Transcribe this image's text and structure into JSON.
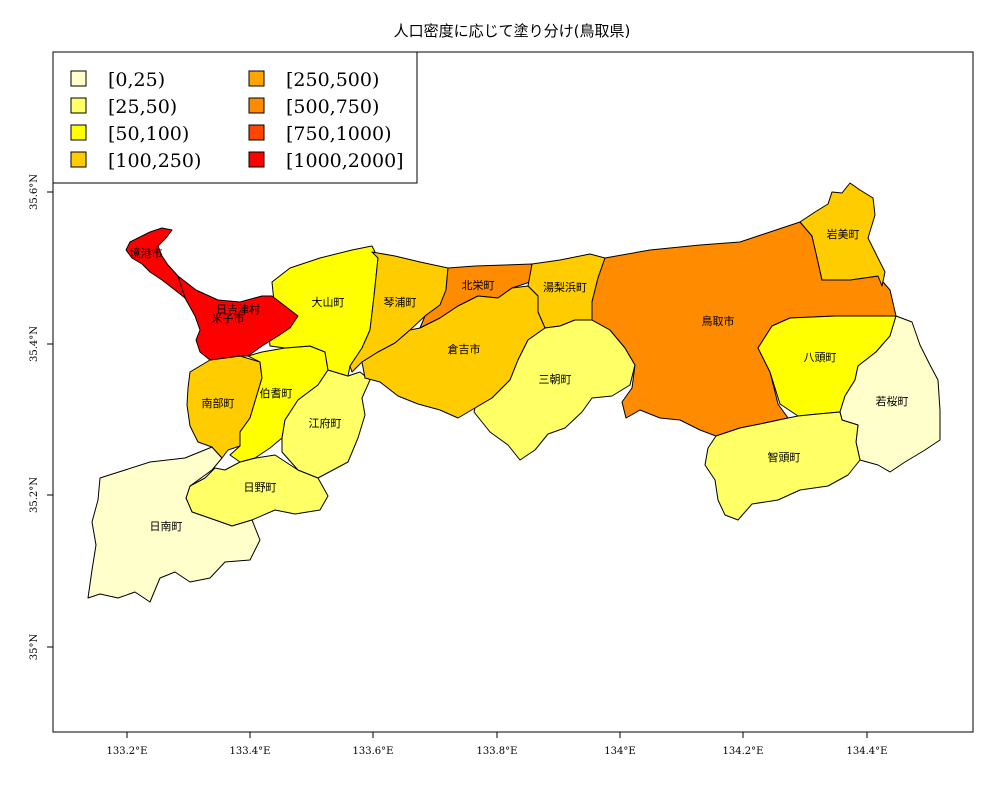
{
  "map": {
    "title": "人口密度に応じて塗り分け(鳥取県)",
    "x_ticks": [
      "133.2°E",
      "133.4°E",
      "133.6°E",
      "133.8°E",
      "134°E",
      "134.2°E",
      "134.4°E"
    ],
    "y_ticks": [
      "35°N",
      "35.2°N",
      "35.4°N",
      "35.6°N"
    ],
    "legend": [
      {
        "label": "[0,25)",
        "color": "#FFFFCC"
      },
      {
        "label": "[25,50)",
        "color": "#FFFF66"
      },
      {
        "label": "[50,100)",
        "color": "#FFFF00"
      },
      {
        "label": "[100,250)",
        "color": "#FFCC00"
      },
      {
        "label": "[250,500)",
        "color": "#FFA500"
      },
      {
        "label": "[500,750)",
        "color": "#FF8C00"
      },
      {
        "label": "[750,1000)",
        "color": "#FF4500"
      },
      {
        "label": "[1000,2000]",
        "color": "#FF0000"
      }
    ],
    "municipalities": [
      {
        "name": "境港市",
        "bin": 7
      },
      {
        "name": "米子市",
        "bin": 7
      },
      {
        "name": "日吉津村",
        "bin": 7
      },
      {
        "name": "大山町",
        "bin": 2
      },
      {
        "name": "琴浦町",
        "bin": 3
      },
      {
        "name": "北栄町",
        "bin": 5
      },
      {
        "name": "湯梨浜町",
        "bin": 3
      },
      {
        "name": "鳥取市",
        "bin": 5
      },
      {
        "name": "岩美町",
        "bin": 3
      },
      {
        "name": "倉吉市",
        "bin": 3
      },
      {
        "name": "三朝町",
        "bin": 1
      },
      {
        "name": "八頭町",
        "bin": 2
      },
      {
        "name": "若桜町",
        "bin": 0
      },
      {
        "name": "智頭町",
        "bin": 1
      },
      {
        "name": "南部町",
        "bin": 3
      },
      {
        "name": "伯耆町",
        "bin": 2
      },
      {
        "name": "江府町",
        "bin": 1
      },
      {
        "name": "日野町",
        "bin": 1
      },
      {
        "name": "日南町",
        "bin": 0
      }
    ]
  }
}
